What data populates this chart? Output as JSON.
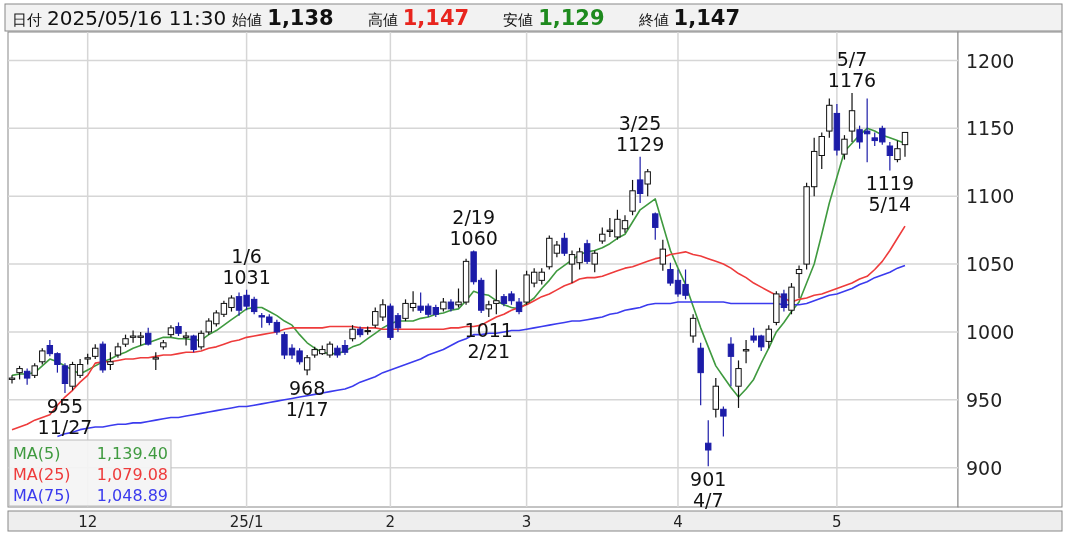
{
  "chart_data": {
    "type": "candlestick",
    "title": "日付 2025/05/16 11:30",
    "annotations": [
      "始値 1,138",
      "高値 1,147",
      "安値 1,129",
      "終値 1,147",
      "1,139.40",
      "1,079.08",
      "1,048.89"
    ],
    "categories": [
      null,
      null,
      null,
      null,
      null,
      null,
      null,
      null,
      null,
      null,
      "12",
      null,
      null,
      null,
      null,
      null,
      null,
      null,
      null,
      null,
      null,
      null,
      null,
      null,
      null,
      null,
      null,
      null,
      null,
      null,
      null,
      "25/1",
      null,
      null,
      null,
      null,
      null,
      null,
      null,
      null,
      null,
      null,
      null,
      null,
      null,
      null,
      null,
      null,
      null,
      null,
      "2",
      null,
      null,
      null,
      null,
      null,
      null,
      null,
      null,
      null,
      null,
      null,
      null,
      null,
      null,
      null,
      null,
      null,
      "3",
      null,
      null,
      null,
      null,
      null,
      null,
      null,
      null,
      null,
      null,
      null,
      null,
      null,
      null,
      null,
      null,
      null,
      null,
      null,
      "4",
      null,
      null,
      null,
      null,
      null,
      null,
      null,
      null,
      null,
      null,
      null,
      null,
      null,
      null,
      null,
      null,
      null,
      null,
      null,
      null,
      "5",
      null,
      null,
      null,
      null,
      null,
      null,
      null,
      null,
      null
    ],
    "ylim": [
      871,
      1221
    ],
    "yticks": [
      900,
      950,
      1000,
      1050,
      1100,
      1150,
      1200
    ],
    "grid": true,
    "legend": "bottom left",
    "series": [
      {
        "type": "line",
        "name": "MA(5)",
        "color": "#3f9a3f",
        "values": [
          968,
          969,
          969,
          970,
          975,
          980,
          978,
          975,
          972,
          969,
          972,
          975,
          978,
          980,
          983,
          985,
          988,
          990,
          992,
          994,
          996,
          996,
          995,
          995,
          994,
          994,
          998,
          1001,
          1005,
          1009,
          1013,
          1017,
          1018,
          1018,
          1015,
          1012,
          1008,
          1005,
          998,
          992,
          988,
          985,
          984,
          984,
          986,
          989,
          991,
          995,
          999,
          1003,
          1006,
          1008,
          1008,
          1008,
          1010,
          1011,
          1013,
          1014,
          1016,
          1017,
          1023,
          1030,
          1028,
          1027,
          1023,
          1020,
          1018,
          1017,
          1021,
          1025,
          1032,
          1038,
          1045,
          1049,
          1053,
          1057,
          1059,
          1060,
          1062,
          1065,
          1069,
          1072,
          1081,
          1090,
          1094,
          1098,
          1079,
          1060,
          1047,
          1035,
          1019,
          1003,
          989,
          975,
          967,
          959,
          952,
          958,
          965,
          977,
          988,
          1000,
          1007,
          1015,
          1022,
          1036,
          1050,
          1072,
          1095,
          1114,
          1133,
          1139,
          1145,
          1150,
          1148,
          1145,
          1143,
          1141,
          1139
        ]
      },
      {
        "type": "line",
        "name": "MA(25)",
        "color": "#ee3b3b",
        "values": [
          928,
          930,
          932,
          935,
          937,
          939,
          946,
          952,
          957,
          963,
          968,
          977,
          978,
          978,
          979,
          980,
          980,
          981,
          981,
          982,
          983,
          983,
          984,
          985,
          985,
          986,
          988,
          989,
          991,
          993,
          994,
          996,
          997,
          998,
          999,
          1000,
          1002,
          1003,
          1003,
          1003,
          1003,
          1003,
          1004,
          1004,
          1004,
          1004,
          1003,
          1003,
          1003,
          1002,
          1002,
          1002,
          1002,
          1002,
          1002,
          1002,
          1002,
          1002,
          1003,
          1003,
          1004,
          1004,
          1005,
          1008,
          1011,
          1013,
          1016,
          1018,
          1020,
          1023,
          1026,
          1028,
          1031,
          1034,
          1036,
          1039,
          1040,
          1040,
          1041,
          1043,
          1045,
          1047,
          1048,
          1050,
          1052,
          1054,
          1055,
          1057,
          1058,
          1059,
          1057,
          1056,
          1054,
          1052,
          1050,
          1047,
          1043,
          1040,
          1036,
          1033,
          1030,
          1027,
          1025,
          1022,
          1024,
          1025,
          1027,
          1028,
          1030,
          1032,
          1034,
          1036,
          1039,
          1041,
          1046,
          1052,
          1060,
          1069,
          1078
        ]
      },
      {
        "type": "line",
        "name": "MA(75)",
        "color": "#3b3bee",
        "values": [
          null,
          null,
          null,
          null,
          null,
          null,
          923,
          925,
          926,
          928,
          929,
          930,
          930,
          931,
          932,
          932,
          933,
          933,
          934,
          935,
          936,
          937,
          937,
          938,
          939,
          940,
          941,
          942,
          943,
          944,
          945,
          945,
          946,
          947,
          948,
          949,
          950,
          951,
          952,
          953,
          954,
          955,
          956,
          957,
          958,
          960,
          963,
          965,
          967,
          970,
          972,
          974,
          976,
          978,
          980,
          983,
          985,
          987,
          990,
          993,
          995,
          998,
          998,
          999,
          999,
          1000,
          1001,
          1001,
          1002,
          1003,
          1004,
          1005,
          1006,
          1007,
          1008,
          1008,
          1009,
          1010,
          1011,
          1013,
          1014,
          1016,
          1017,
          1018,
          1020,
          1021,
          1021,
          1021,
          1022,
          1022,
          1022,
          1022,
          1022,
          1022,
          1022,
          1021,
          1021,
          1021,
          1021,
          1021,
          1021,
          1021,
          1020,
          1020,
          1020,
          1021,
          1023,
          1025,
          1027,
          1028,
          1030,
          1032,
          1035,
          1037,
          1040,
          1042,
          1044,
          1047,
          1049
        ]
      },
      {
        "type": "candlestick",
        "colors": [
          "#ffffff",
          "#ffffff",
          "#1c1ca8",
          "#ffffff",
          "#ffffff",
          "#1c1ca8",
          "#1c1ca8",
          "#1c1ca8",
          "#ffffff",
          "#ffffff",
          "#ffffff",
          "#ffffff",
          "#1c1ca8",
          "#ffffff",
          "#ffffff",
          "#ffffff",
          "#ffffff",
          "#ffffff",
          "#1c1ca8",
          "#ffffff",
          "#ffffff",
          "#ffffff",
          "#1c1ca8",
          "#ffffff",
          "#1c1ca8",
          "#ffffff",
          "#ffffff",
          "#ffffff",
          "#ffffff",
          "#ffffff",
          "#1c1ca8",
          "#1c1ca8",
          "#1c1ca8",
          "#1c1ca8",
          "#1c1ca8",
          "#1c1ca8",
          "#1c1ca8",
          "#1c1ca8",
          "#1c1ca8",
          "#ffffff",
          "#ffffff",
          "#ffffff",
          "#ffffff",
          "#1c1ca8",
          "#1c1ca8",
          "#ffffff",
          "#1c1ca8",
          "#ffffff",
          "#ffffff",
          "#ffffff",
          "#1c1ca8",
          "#1c1ca8",
          "#ffffff",
          "#ffffff",
          "#1c1ca8",
          "#1c1ca8",
          "#1c1ca8",
          "#ffffff",
          "#1c1ca8",
          "#ffffff",
          "#ffffff",
          "#1c1ca8",
          "#1c1ca8",
          "#ffffff",
          "#ffffff",
          "#1c1ca8",
          "#1c1ca8",
          "#1c1ca8",
          "#ffffff",
          "#ffffff",
          "#ffffff",
          "#ffffff",
          "#ffffff",
          "#1c1ca8",
          "#ffffff",
          "#ffffff",
          "#1c1ca8",
          "#ffffff",
          "#ffffff",
          "#ffffff",
          "#ffffff",
          "#ffffff",
          "#ffffff",
          "#1c1ca8",
          "#ffffff",
          "#1c1ca8",
          "#ffffff",
          "#1c1ca8",
          "#1c1ca8",
          "#1c1ca8",
          "#ffffff",
          "#1c1ca8",
          "#1c1ca8",
          "#ffffff",
          "#1c1ca8",
          "#1c1ca8",
          "#ffffff",
          "#ffffff",
          "#1c1ca8",
          "#1c1ca8",
          "#ffffff",
          "#ffffff",
          "#1c1ca8",
          "#ffffff",
          "#ffffff",
          "#ffffff",
          "#ffffff",
          "#ffffff",
          "#ffffff",
          "#1c1ca8",
          "#ffffff",
          "#ffffff",
          "#1c1ca8",
          "#1c1ca8",
          "#1c1ca8",
          "#1c1ca8",
          "#1c1ca8",
          "#ffffff",
          "#ffffff"
        ],
        "ohlc": [
          [
            965,
            968,
            962,
            966
          ],
          [
            970,
            975,
            965,
            973
          ],
          [
            971,
            973,
            961,
            966
          ],
          [
            968,
            977,
            966,
            975
          ],
          [
            978,
            988,
            976,
            986
          ],
          [
            990,
            994,
            982,
            984
          ],
          [
            984,
            985,
            970,
            976
          ],
          [
            975,
            977,
            955,
            962
          ],
          [
            960,
            978,
            957,
            976
          ],
          [
            968,
            980,
            966,
            976
          ],
          [
            980,
            984,
            976,
            981
          ],
          [
            982,
            991,
            980,
            988
          ],
          [
            991,
            993,
            970,
            972
          ],
          [
            976,
            985,
            972,
            978
          ],
          [
            983,
            992,
            981,
            989
          ],
          [
            991,
            998,
            989,
            995
          ],
          [
            996,
            1001,
            992,
            997
          ],
          [
            996,
            1000,
            990,
            997
          ],
          [
            999,
            1003,
            990,
            991
          ],
          [
            980,
            985,
            972,
            981
          ],
          [
            989,
            994,
            987,
            992
          ],
          [
            998,
            1005,
            996,
            1003
          ],
          [
            1004,
            1007,
            997,
            999
          ],
          [
            996,
            1000,
            990,
            997
          ],
          [
            997,
            998,
            985,
            987
          ],
          [
            989,
            1001,
            987,
            999
          ],
          [
            1000,
            1010,
            998,
            1008
          ],
          [
            1006,
            1016,
            1004,
            1014
          ],
          [
            1013,
            1023,
            1011,
            1021
          ],
          [
            1018,
            1027,
            1015,
            1025
          ],
          [
            1026,
            1029,
            1012,
            1016
          ],
          [
            1027,
            1031,
            1016,
            1019
          ],
          [
            1024,
            1026,
            1013,
            1015
          ],
          [
            1012,
            1014,
            1003,
            1011
          ],
          [
            1011,
            1013,
            1005,
            1007
          ],
          [
            1007,
            1009,
            998,
            1000
          ],
          [
            998,
            1000,
            980,
            983
          ],
          [
            988,
            991,
            980,
            983
          ],
          [
            986,
            988,
            976,
            978
          ],
          [
            972,
            983,
            968,
            981
          ],
          [
            983,
            989,
            981,
            987
          ],
          [
            984,
            990,
            983,
            987
          ],
          [
            983,
            993,
            981,
            991
          ],
          [
            988,
            990,
            981,
            983
          ],
          [
            990,
            994,
            983,
            985
          ],
          [
            995,
            1005,
            993,
            1002
          ],
          [
            1002,
            1004,
            996,
            998
          ],
          [
            1001,
            1004,
            998,
            1001
          ],
          [
            1005,
            1018,
            1003,
            1015
          ],
          [
            1011,
            1024,
            1008,
            1020
          ],
          [
            1019,
            1021,
            994,
            996
          ],
          [
            1012,
            1014,
            1000,
            1003
          ],
          [
            1010,
            1024,
            1008,
            1021
          ],
          [
            1018,
            1030,
            1015,
            1021
          ],
          [
            1019,
            1029,
            1014,
            1016
          ],
          [
            1019,
            1021,
            1011,
            1013
          ],
          [
            1018,
            1020,
            1011,
            1013
          ],
          [
            1017,
            1025,
            1015,
            1022
          ],
          [
            1022,
            1024,
            1015,
            1017
          ],
          [
            1020,
            1032,
            1018,
            1022
          ],
          [
            1022,
            1054,
            1020,
            1052
          ],
          [
            1059,
            1060,
            1035,
            1037
          ],
          [
            1038,
            1040,
            1014,
            1016
          ],
          [
            1017,
            1023,
            1011,
            1020
          ],
          [
            1021,
            1046,
            1013,
            1023
          ],
          [
            1026,
            1028,
            1019,
            1021
          ],
          [
            1028,
            1030,
            1020,
            1023
          ],
          [
            1022,
            1025,
            1013,
            1015
          ],
          [
            1022,
            1045,
            1020,
            1042
          ],
          [
            1036,
            1047,
            1033,
            1044
          ],
          [
            1038,
            1047,
            1035,
            1044
          ],
          [
            1048,
            1071,
            1046,
            1069
          ],
          [
            1058,
            1067,
            1055,
            1064
          ],
          [
            1069,
            1073,
            1056,
            1058
          ],
          [
            1050,
            1060,
            1036,
            1057
          ],
          [
            1051,
            1062,
            1046,
            1059
          ],
          [
            1065,
            1068,
            1050,
            1052
          ],
          [
            1050,
            1060,
            1044,
            1058
          ],
          [
            1067,
            1077,
            1065,
            1072
          ],
          [
            1074,
            1084,
            1070,
            1075
          ],
          [
            1070,
            1090,
            1068,
            1083
          ],
          [
            1076,
            1086,
            1073,
            1082
          ],
          [
            1089,
            1112,
            1086,
            1104
          ],
          [
            1112,
            1129,
            1095,
            1102
          ],
          [
            1109,
            1120,
            1100,
            1118
          ],
          [
            1087,
            1088,
            1068,
            1077
          ],
          [
            1050,
            1068,
            1045,
            1061
          ],
          [
            1046,
            1051,
            1034,
            1036
          ],
          [
            1038,
            1046,
            1026,
            1028
          ],
          [
            1035,
            1046,
            1024,
            1027
          ],
          [
            997,
            1013,
            992,
            1010
          ],
          [
            988,
            992,
            946,
            970
          ],
          [
            918,
            935,
            901,
            913
          ],
          [
            943,
            966,
            937,
            960
          ],
          [
            943,
            945,
            923,
            938
          ],
          [
            991,
            996,
            960,
            982
          ],
          [
            960,
            979,
            944,
            973
          ],
          [
            986,
            994,
            977,
            987
          ],
          [
            997,
            1003,
            992,
            994
          ],
          [
            997,
            998,
            986,
            989
          ],
          [
            993,
            1005,
            988,
            1002
          ],
          [
            1007,
            1030,
            1005,
            1028
          ],
          [
            1028,
            1031,
            1015,
            1018
          ],
          [
            1016,
            1036,
            1013,
            1033
          ],
          [
            1043,
            1049,
            1025,
            1046
          ],
          [
            1050,
            1110,
            1046,
            1107
          ],
          [
            1107,
            1143,
            1100,
            1133
          ],
          [
            1130,
            1147,
            1120,
            1144
          ],
          [
            1148,
            1172,
            1143,
            1167
          ],
          [
            1161,
            1168,
            1130,
            1134
          ],
          [
            1131,
            1145,
            1127,
            1142
          ],
          [
            1148,
            1176,
            1140,
            1163
          ],
          [
            1149,
            1152,
            1135,
            1140
          ],
          [
            1148,
            1172,
            1125,
            1146
          ],
          [
            1143,
            1147,
            1137,
            1141
          ],
          [
            1150,
            1152,
            1138,
            1140
          ],
          [
            1137,
            1140,
            1119,
            1130
          ],
          [
            1127,
            1141,
            1125,
            1135
          ],
          [
            1138,
            1147,
            1129,
            1147
          ]
        ],
        "value_labels": [
          null,
          null,
          null,
          null,
          null,
          null,
          null,
          "955\n11/27",
          null,
          null,
          null,
          null,
          null,
          null,
          null,
          null,
          null,
          null,
          null,
          null,
          null,
          null,
          null,
          null,
          null,
          null,
          null,
          null,
          null,
          null,
          null,
          "1/6\n1031",
          null,
          null,
          null,
          null,
          null,
          null,
          null,
          "968\n1/17",
          null,
          null,
          null,
          null,
          null,
          null,
          null,
          null,
          null,
          null,
          null,
          null,
          null,
          null,
          null,
          null,
          null,
          null,
          null,
          null,
          null,
          "2/19\n1060",
          null,
          "1011\n2/21",
          null,
          null,
          null,
          null,
          null,
          null,
          null,
          null,
          null,
          null,
          null,
          null,
          null,
          null,
          null,
          null,
          null,
          null,
          null,
          "3/25\n1129",
          null,
          null,
          null,
          null,
          null,
          null,
          null,
          null,
          "901\n4/7",
          null,
          null,
          null,
          null,
          null,
          null,
          null,
          null,
          null,
          null,
          null,
          null,
          null,
          null,
          null,
          null,
          null,
          null,
          "5/7\n1176",
          null,
          null,
          null,
          null,
          "1119\n5/14",
          null,
          null
        ]
      }
    ]
  }
}
